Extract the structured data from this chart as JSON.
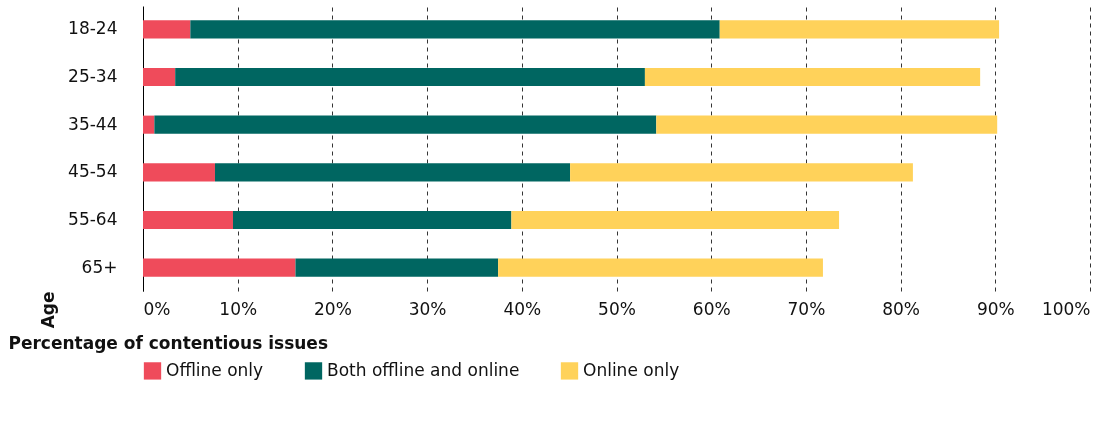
{
  "chart_data": {
    "type": "bar",
    "orientation": "horizontal",
    "stacked": true,
    "xlabel": "Percentage of contentious issues",
    "ylabel": "Age",
    "categories": [
      "18-24",
      "25-34",
      "35-44",
      "45-54",
      "55-64",
      "65+"
    ],
    "series": [
      {
        "name": "Offline only",
        "color": "#ef4b5b",
        "values": [
          5.0,
          3.4,
          1.2,
          7.6,
          9.5,
          16.1
        ]
      },
      {
        "name": "Both offline and online",
        "color": "#006661",
        "values": [
          55.9,
          49.6,
          53.0,
          37.5,
          29.4,
          21.4
        ]
      },
      {
        "name": "Online only",
        "color": "#ffd25a",
        "values": [
          29.5,
          35.4,
          36.0,
          36.2,
          34.6,
          34.3
        ]
      }
    ],
    "xlim": [
      0,
      100
    ],
    "xticks": [
      {
        "value": 0,
        "label": "0%"
      },
      {
        "value": 10,
        "label": "10%"
      },
      {
        "value": 20,
        "label": "20%"
      },
      {
        "value": 30,
        "label": "30%"
      },
      {
        "value": 40,
        "label": "40%"
      },
      {
        "value": 50,
        "label": "50%"
      },
      {
        "value": 60,
        "label": "60%"
      },
      {
        "value": 70,
        "label": "70%"
      },
      {
        "value": 80,
        "label": "80%"
      },
      {
        "value": 90,
        "label": "90%"
      },
      {
        "value": 100,
        "label": "100%"
      }
    ],
    "grid": "x",
    "legend": "bottom"
  }
}
